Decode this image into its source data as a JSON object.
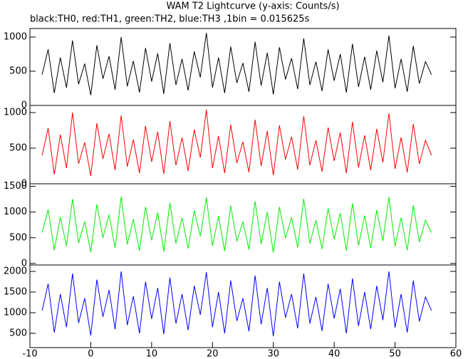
{
  "chart_data": [
    {
      "type": "line",
      "title": "WAM T2 Lightcurve (y-axis: Counts/s)",
      "subtitle": "black:TH0, red:TH1, green:TH2, blue:TH3 ,1bin = 0.015625s",
      "x": [
        -8,
        -7,
        -6,
        -5,
        -4,
        -3,
        -2,
        -1,
        0,
        1,
        2,
        3,
        4,
        5,
        6,
        7,
        8,
        9,
        10,
        11,
        12,
        13,
        14,
        15,
        16,
        17,
        18,
        19,
        20,
        21,
        22,
        23,
        24,
        25,
        26,
        27,
        28,
        29,
        30,
        31,
        32,
        33,
        34,
        35,
        36,
        37,
        38,
        39,
        40,
        41,
        42,
        43,
        44,
        45,
        46,
        47,
        48,
        49,
        50,
        51,
        52,
        53,
        54,
        55,
        56
      ],
      "series": [
        {
          "color": "#000000",
          "values": [
            450,
            820,
            180,
            700,
            260,
            950,
            310,
            610,
            150,
            880,
            390,
            720,
            230,
            1000,
            280,
            650,
            190,
            840,
            350,
            760,
            170,
            910,
            300,
            680,
            220,
            790,
            410,
            1060,
            260,
            700,
            180,
            860,
            330,
            620,
            200,
            930,
            290,
            770,
            160,
            850,
            380,
            690,
            240,
            980,
            300,
            640,
            210,
            820,
            360,
            750,
            190,
            900,
            270,
            710,
            230,
            800,
            340,
            1020,
            250,
            680,
            200,
            870,
            320,
            640,
            450
          ]
        }
      ],
      "xlim": [
        -10,
        60
      ],
      "ylim": [
        0,
        1125
      ],
      "yticks": [
        0,
        500,
        1000
      ]
    },
    {
      "type": "line",
      "x": [
        -8,
        -7,
        -6,
        -5,
        -4,
        -3,
        -2,
        -1,
        0,
        1,
        2,
        3,
        4,
        5,
        6,
        7,
        8,
        9,
        10,
        11,
        12,
        13,
        14,
        15,
        16,
        17,
        18,
        19,
        20,
        21,
        22,
        23,
        24,
        25,
        26,
        27,
        28,
        29,
        30,
        31,
        32,
        33,
        34,
        35,
        36,
        37,
        38,
        39,
        40,
        41,
        42,
        43,
        44,
        45,
        46,
        47,
        48,
        49,
        50,
        51,
        52,
        53,
        54,
        55,
        56
      ],
      "series": [
        {
          "color": "#ff0000",
          "values": [
            400,
            780,
            130,
            690,
            220,
            1000,
            280,
            580,
            110,
            850,
            350,
            700,
            190,
            960,
            240,
            620,
            150,
            810,
            310,
            730,
            140,
            880,
            260,
            650,
            180,
            760,
            370,
            1040,
            220,
            670,
            150,
            830,
            290,
            590,
            160,
            900,
            250,
            740,
            120,
            820,
            340,
            660,
            200,
            950,
            260,
            610,
            170,
            790,
            320,
            720,
            150,
            870,
            230,
            680,
            190,
            770,
            300,
            990,
            210,
            650,
            160,
            840,
            280,
            610,
            400
          ]
        }
      ],
      "xlim": [
        -10,
        60
      ],
      "ylim": [
        0,
        1100
      ],
      "yticks": [
        0,
        500,
        1000
      ]
    },
    {
      "type": "line",
      "x": [
        -8,
        -7,
        -6,
        -5,
        -4,
        -3,
        -2,
        -1,
        0,
        1,
        2,
        3,
        4,
        5,
        6,
        7,
        8,
        9,
        10,
        11,
        12,
        13,
        14,
        15,
        16,
        17,
        18,
        19,
        20,
        21,
        22,
        23,
        24,
        25,
        26,
        27,
        28,
        29,
        30,
        31,
        32,
        33,
        34,
        35,
        36,
        37,
        38,
        39,
        40,
        41,
        42,
        43,
        44,
        45,
        46,
        47,
        48,
        49,
        50,
        51,
        52,
        53,
        54,
        55,
        56
      ],
      "series": [
        {
          "color": "#00ee00",
          "values": [
            600,
            1050,
            260,
            900,
            340,
            1250,
            400,
            820,
            220,
            1150,
            500,
            950,
            300,
            1300,
            370,
            860,
            250,
            1100,
            450,
            990,
            230,
            1180,
            390,
            890,
            290,
            1030,
            530,
            1280,
            340,
            920,
            240,
            1120,
            430,
            810,
            270,
            1210,
            380,
            1000,
            210,
            1100,
            490,
            900,
            310,
            1260,
            390,
            840,
            280,
            1070,
            470,
            980,
            250,
            1170,
            350,
            930,
            300,
            1040,
            440,
            1290,
            330,
            890,
            260,
            1130,
            420,
            840,
            600
          ]
        }
      ],
      "xlim": [
        -10,
        60
      ],
      "ylim": [
        -30,
        1550
      ],
      "yticks": [
        0,
        500,
        1000,
        1500
      ]
    },
    {
      "type": "line",
      "x": [
        -8,
        -7,
        -6,
        -5,
        -4,
        -3,
        -2,
        -1,
        0,
        1,
        2,
        3,
        4,
        5,
        6,
        7,
        8,
        9,
        10,
        11,
        12,
        13,
        14,
        15,
        16,
        17,
        18,
        19,
        20,
        21,
        22,
        23,
        24,
        25,
        26,
        27,
        28,
        29,
        30,
        31,
        32,
        33,
        34,
        35,
        36,
        37,
        38,
        39,
        40,
        41,
        42,
        43,
        44,
        45,
        46,
        47,
        48,
        49,
        50,
        51,
        52,
        53,
        54,
        55,
        56
      ],
      "series": [
        {
          "color": "#0000ff",
          "values": [
            1050,
            1700,
            520,
            1450,
            650,
            1950,
            750,
            1350,
            450,
            1800,
            900,
            1550,
            600,
            2000,
            700,
            1400,
            500,
            1750,
            850,
            1600,
            480,
            1850,
            740,
            1450,
            580,
            1650,
            950,
            1980,
            650,
            1500,
            500,
            1780,
            800,
            1350,
            550,
            1900,
            720,
            1600,
            430,
            1750,
            880,
            1450,
            620,
            1950,
            740,
            1380,
            560,
            1700,
            860,
            1580,
            500,
            1830,
            680,
            1500,
            600,
            1650,
            820,
            2000,
            640,
            1450,
            520,
            1780,
            790,
            1380,
            1050
          ]
        }
      ],
      "xlim": [
        -10,
        60
      ],
      "ylim": [
        155,
        2155
      ],
      "yticks": [
        500,
        1000,
        1500,
        2000
      ],
      "xticks": [
        -10,
        0,
        10,
        20,
        30,
        40,
        50,
        60
      ]
    }
  ]
}
